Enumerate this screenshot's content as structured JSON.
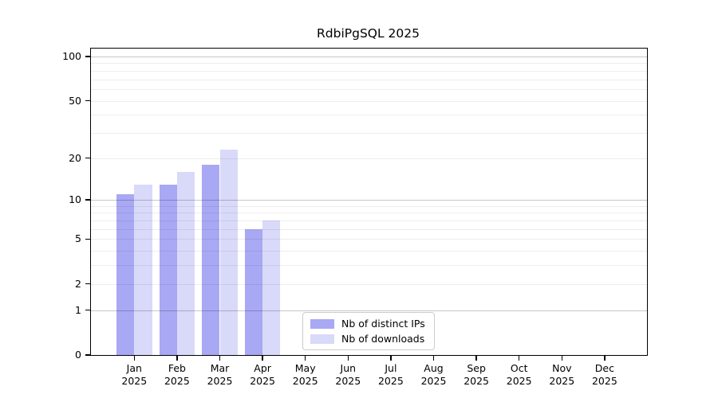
{
  "chart_data": {
    "type": "bar",
    "title": "RdbiPgSQL 2025",
    "year": "2025",
    "categories": [
      "Jan",
      "Feb",
      "Mar",
      "Apr",
      "May",
      "Jun",
      "Jul",
      "Aug",
      "Sep",
      "Oct",
      "Nov",
      "Dec"
    ],
    "series": [
      {
        "name": "Nb of distinct IPs",
        "color": "#a8a8f4",
        "values": [
          11,
          13,
          18,
          6,
          0,
          0,
          0,
          0,
          0,
          0,
          0,
          0
        ]
      },
      {
        "name": "Nb of downloads",
        "color": "#d9d9f9",
        "values": [
          13,
          16,
          23,
          7,
          0,
          0,
          0,
          0,
          0,
          0,
          0,
          0
        ]
      }
    ],
    "y_axis": {
      "scale": "log10(1+value)",
      "ticks": [
        100,
        50,
        20,
        10,
        5,
        2,
        1,
        0
      ],
      "ylim": [
        0,
        100
      ]
    },
    "gridlines": {
      "minor": [
        2,
        3,
        4,
        5,
        6,
        7,
        8,
        9,
        20,
        30,
        40,
        50,
        60,
        70,
        80,
        90
      ],
      "major": [
        1,
        10,
        100
      ],
      "minor_color": "rgba(0,0,0,0.07)",
      "major_color": "rgba(0,0,0,0.22)"
    },
    "legend_position": "bottom-center-inside",
    "grid": "on"
  },
  "legend": {
    "items": [
      {
        "label": "Nb of distinct IPs"
      },
      {
        "label": "Nb of downloads"
      }
    ]
  }
}
